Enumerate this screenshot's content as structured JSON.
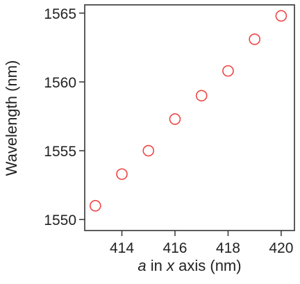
{
  "chart_data": {
    "type": "scatter",
    "title": "",
    "xlabel_parts": [
      "a",
      " in ",
      "x",
      " axis (nm)"
    ],
    "ylabel": "Wavelength (nm)",
    "xlim": [
      412.6,
      420.5
    ],
    "ylim": [
      1549.2,
      1565.6
    ],
    "xticks": [
      414,
      416,
      418,
      420
    ],
    "yticks": [
      1550,
      1555,
      1560,
      1565
    ],
    "grid": false,
    "marker": "open-circle",
    "marker_color": "#ee4444",
    "series": [
      {
        "x": [
          413,
          414,
          415,
          416,
          417,
          418,
          419,
          420
        ],
        "y": [
          1551.0,
          1553.3,
          1555.0,
          1557.3,
          1559.0,
          1560.8,
          1563.1,
          1564.8
        ]
      }
    ]
  }
}
